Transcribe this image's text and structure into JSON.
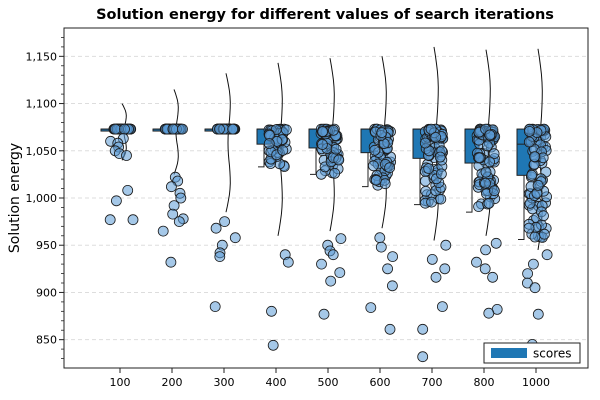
{
  "chart_data": {
    "type": "raincloud",
    "title": "Solution energy for different values of search iterations",
    "xlabel": "",
    "ylabel": "Solution energy",
    "categories": [
      "100",
      "200",
      "300",
      "400",
      "500",
      "600",
      "700",
      "800",
      "1000"
    ],
    "ylim": [
      820,
      1180
    ],
    "yticks": [
      850,
      900,
      950,
      1000,
      1050,
      1100,
      1150
    ],
    "ytick_labels": [
      "850",
      "900",
      "950",
      "1,000",
      "1,050",
      "1,100",
      "1,150"
    ],
    "grid": true,
    "legend": {
      "position": "bottom-right",
      "entries": [
        "scores"
      ]
    },
    "colors": {
      "series": "#1f77b4",
      "point_fill": "#5b9bd5",
      "edge": "#1a1a1a",
      "grid": "#dddddd"
    },
    "groups": [
      {
        "category": "100",
        "box": {
          "q1": 1073,
          "median": 1073,
          "q3": 1073,
          "whisker_low": 1073,
          "whisker_high": 1073
        },
        "kde_range": [
          1040,
          1100
        ],
        "outliers": [
          1063,
          1060,
          1058,
          1054,
          1050,
          1047,
          1045,
          1008,
          997,
          977,
          977
        ]
      },
      {
        "category": "200",
        "box": {
          "q1": 1073,
          "median": 1073,
          "q3": 1073,
          "whisker_low": 1073,
          "whisker_high": 1073
        },
        "kde_range": [
          1025,
          1115
        ],
        "outliers": [
          1022,
          1018,
          1012,
          1005,
          1000,
          992,
          983,
          978,
          975,
          965,
          932
        ]
      },
      {
        "category": "300",
        "box": {
          "q1": 1073,
          "median": 1073,
          "q3": 1073,
          "whisker_low": 1073,
          "whisker_high": 1073
        },
        "kde_range": [
          985,
          1132
        ],
        "outliers": [
          975,
          968,
          958,
          950,
          942,
          938,
          885
        ]
      },
      {
        "category": "400",
        "box": {
          "q1": 1057,
          "median": 1073,
          "q3": 1073,
          "whisker_low": 1033,
          "whisker_high": 1073
        },
        "kde_range": [
          960,
          1143
        ],
        "outliers": [
          940,
          932,
          880,
          844
        ]
      },
      {
        "category": "500",
        "box": {
          "q1": 1053,
          "median": 1073,
          "q3": 1073,
          "whisker_low": 1025,
          "whisker_high": 1073
        },
        "kde_range": [
          965,
          1148
        ],
        "outliers": [
          957,
          950,
          944,
          940,
          930,
          921,
          912,
          877
        ]
      },
      {
        "category": "600",
        "box": {
          "q1": 1048,
          "median": 1073,
          "q3": 1073,
          "whisker_low": 1012,
          "whisker_high": 1073
        },
        "kde_range": [
          968,
          1150
        ],
        "outliers": [
          958,
          948,
          938,
          925,
          907,
          884,
          861
        ]
      },
      {
        "category": "700",
        "box": {
          "q1": 1042,
          "median": 1073,
          "q3": 1073,
          "whisker_low": 993,
          "whisker_high": 1073
        },
        "kde_range": [
          955,
          1160
        ],
        "outliers": [
          950,
          935,
          925,
          916,
          885,
          861,
          832
        ]
      },
      {
        "category": "800",
        "box": {
          "q1": 1037,
          "median": 1073,
          "q3": 1073,
          "whisker_low": 985,
          "whisker_high": 1073
        },
        "kde_range": [
          960,
          1157
        ],
        "outliers": [
          952,
          945,
          932,
          925,
          916,
          882,
          878
        ]
      },
      {
        "category": "1000",
        "box": {
          "q1": 1024,
          "median": 1057,
          "q3": 1073,
          "whisker_low": 956,
          "whisker_high": 1073
        },
        "kde_range": [
          945,
          1158
        ],
        "outliers": [
          940,
          930,
          920,
          910,
          905,
          877,
          845
        ]
      }
    ]
  }
}
